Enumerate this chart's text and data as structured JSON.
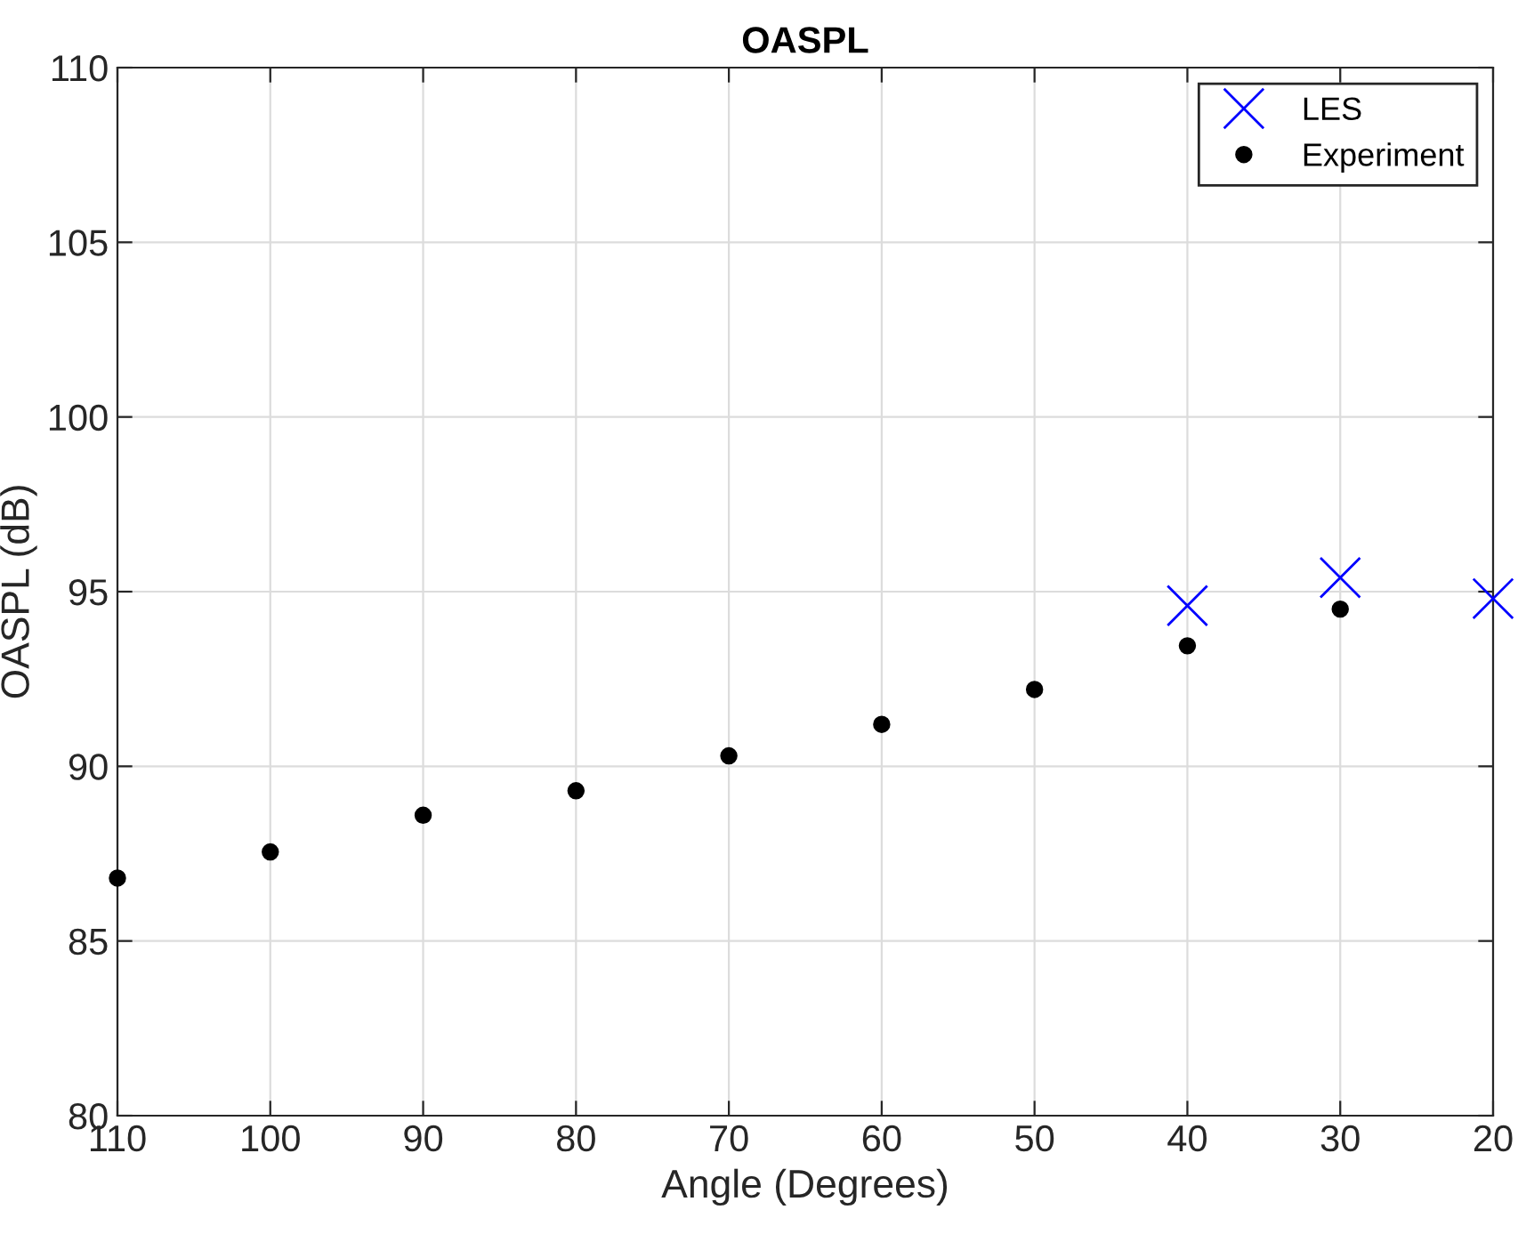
{
  "chart_data": {
    "type": "scatter",
    "title": "OASPL",
    "xlabel": "Angle (Degrees)",
    "ylabel": "OASPL (dB)",
    "xlim": [
      110,
      20
    ],
    "xticks": [
      110,
      100,
      90,
      80,
      70,
      60,
      50,
      40,
      30,
      20
    ],
    "ylim": [
      80,
      110
    ],
    "yticks": [
      80,
      85,
      90,
      95,
      100,
      105,
      110
    ],
    "grid": true,
    "legend": "top right",
    "series": [
      {
        "name": "LES",
        "color": "#0000ff",
        "marker": "cross",
        "x": [
          40,
          30,
          20
        ],
        "values": [
          94.6,
          95.4,
          94.8
        ]
      },
      {
        "name": "Experiment",
        "color": "#000000",
        "marker": "circle",
        "x": [
          110,
          100,
          90,
          80,
          70,
          60,
          50,
          40,
          30
        ],
        "values": [
          86.8,
          87.55,
          88.6,
          89.3,
          90.3,
          91.2,
          92.2,
          93.45,
          94.5
        ]
      }
    ]
  }
}
